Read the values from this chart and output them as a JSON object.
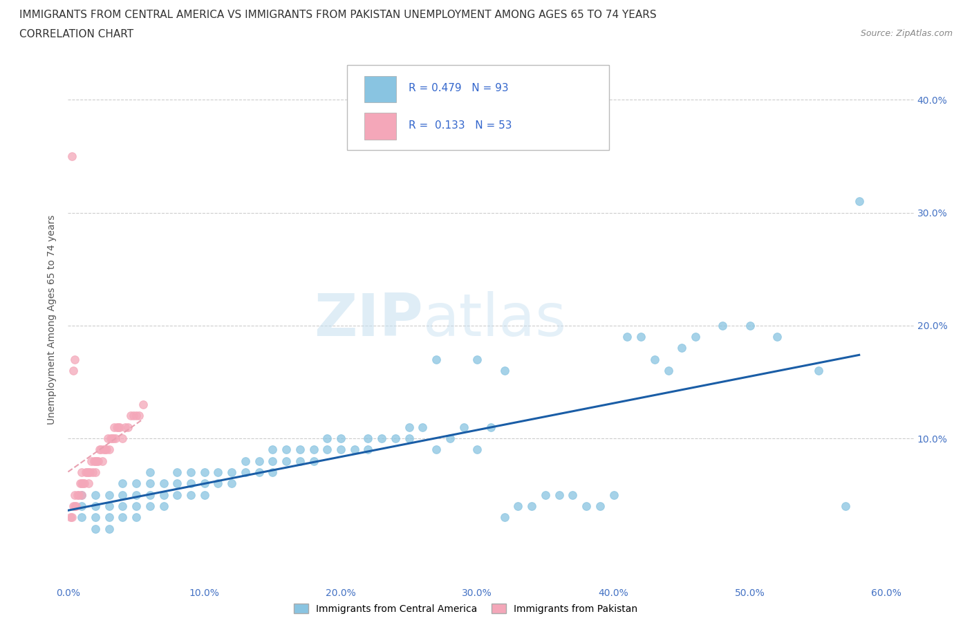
{
  "title_line1": "IMMIGRANTS FROM CENTRAL AMERICA VS IMMIGRANTS FROM PAKISTAN UNEMPLOYMENT AMONG AGES 65 TO 74 YEARS",
  "title_line2": "CORRELATION CHART",
  "source_text": "Source: ZipAtlas.com",
  "ylabel": "Unemployment Among Ages 65 to 74 years",
  "xlim": [
    0.0,
    0.62
  ],
  "ylim": [
    -0.03,
    0.44
  ],
  "xtick_labels": [
    "0.0%",
    "10.0%",
    "20.0%",
    "30.0%",
    "40.0%",
    "50.0%",
    "60.0%"
  ],
  "xtick_values": [
    0.0,
    0.1,
    0.2,
    0.3,
    0.4,
    0.5,
    0.6
  ],
  "ytick_labels": [
    "10.0%",
    "20.0%",
    "30.0%",
    "40.0%"
  ],
  "ytick_values": [
    0.1,
    0.2,
    0.3,
    0.4
  ],
  "legend_label1": "Immigrants from Central America",
  "legend_label2": "Immigrants from Pakistan",
  "r1": 0.479,
  "n1": 93,
  "r2": 0.133,
  "n2": 53,
  "blue_color": "#89c4e1",
  "pink_color": "#f4a7b9",
  "trendline1_color": "#1a5da6",
  "trendline2_color": "#e8a0b0",
  "watermark_zip": "ZIP",
  "watermark_atlas": "atlas",
  "blue_scatter_x": [
    0.01,
    0.01,
    0.01,
    0.02,
    0.02,
    0.02,
    0.02,
    0.03,
    0.03,
    0.03,
    0.03,
    0.04,
    0.04,
    0.04,
    0.04,
    0.05,
    0.05,
    0.05,
    0.05,
    0.06,
    0.06,
    0.06,
    0.06,
    0.07,
    0.07,
    0.07,
    0.08,
    0.08,
    0.08,
    0.09,
    0.09,
    0.09,
    0.1,
    0.1,
    0.1,
    0.11,
    0.11,
    0.12,
    0.12,
    0.13,
    0.13,
    0.14,
    0.14,
    0.15,
    0.15,
    0.15,
    0.16,
    0.16,
    0.17,
    0.17,
    0.18,
    0.18,
    0.19,
    0.19,
    0.2,
    0.2,
    0.21,
    0.22,
    0.22,
    0.23,
    0.24,
    0.25,
    0.25,
    0.26,
    0.27,
    0.27,
    0.28,
    0.29,
    0.3,
    0.31,
    0.32,
    0.33,
    0.34,
    0.35,
    0.36,
    0.37,
    0.38,
    0.39,
    0.4,
    0.41,
    0.42,
    0.43,
    0.44,
    0.45,
    0.46,
    0.48,
    0.5,
    0.52,
    0.55,
    0.57,
    0.3,
    0.32,
    0.58
  ],
  "blue_scatter_y": [
    0.03,
    0.04,
    0.05,
    0.02,
    0.03,
    0.04,
    0.05,
    0.02,
    0.03,
    0.04,
    0.05,
    0.03,
    0.04,
    0.05,
    0.06,
    0.03,
    0.04,
    0.05,
    0.06,
    0.04,
    0.05,
    0.06,
    0.07,
    0.04,
    0.05,
    0.06,
    0.05,
    0.06,
    0.07,
    0.05,
    0.06,
    0.07,
    0.05,
    0.06,
    0.07,
    0.06,
    0.07,
    0.06,
    0.07,
    0.07,
    0.08,
    0.07,
    0.08,
    0.07,
    0.08,
    0.09,
    0.08,
    0.09,
    0.08,
    0.09,
    0.08,
    0.09,
    0.09,
    0.1,
    0.09,
    0.1,
    0.09,
    0.09,
    0.1,
    0.1,
    0.1,
    0.1,
    0.11,
    0.11,
    0.09,
    0.17,
    0.1,
    0.11,
    0.09,
    0.11,
    0.03,
    0.04,
    0.04,
    0.05,
    0.05,
    0.05,
    0.04,
    0.04,
    0.05,
    0.19,
    0.19,
    0.17,
    0.16,
    0.18,
    0.19,
    0.2,
    0.2,
    0.19,
    0.16,
    0.04,
    0.17,
    0.16,
    0.31
  ],
  "pink_scatter_x": [
    0.002,
    0.003,
    0.004,
    0.005,
    0.005,
    0.006,
    0.007,
    0.008,
    0.009,
    0.01,
    0.01,
    0.01,
    0.011,
    0.012,
    0.013,
    0.014,
    0.015,
    0.015,
    0.016,
    0.017,
    0.018,
    0.019,
    0.02,
    0.02,
    0.021,
    0.022,
    0.023,
    0.024,
    0.025,
    0.026,
    0.027,
    0.028,
    0.029,
    0.03,
    0.031,
    0.032,
    0.033,
    0.034,
    0.035,
    0.036,
    0.037,
    0.038,
    0.04,
    0.042,
    0.044,
    0.046,
    0.048,
    0.05,
    0.052,
    0.055,
    0.003,
    0.004,
    0.005
  ],
  "pink_scatter_y": [
    0.03,
    0.03,
    0.04,
    0.04,
    0.05,
    0.04,
    0.05,
    0.05,
    0.06,
    0.05,
    0.06,
    0.07,
    0.06,
    0.06,
    0.07,
    0.07,
    0.06,
    0.07,
    0.07,
    0.08,
    0.07,
    0.08,
    0.07,
    0.08,
    0.08,
    0.08,
    0.09,
    0.09,
    0.08,
    0.09,
    0.09,
    0.09,
    0.1,
    0.09,
    0.1,
    0.1,
    0.1,
    0.11,
    0.1,
    0.11,
    0.11,
    0.11,
    0.1,
    0.11,
    0.11,
    0.12,
    0.12,
    0.12,
    0.12,
    0.13,
    0.35,
    0.16,
    0.17
  ]
}
